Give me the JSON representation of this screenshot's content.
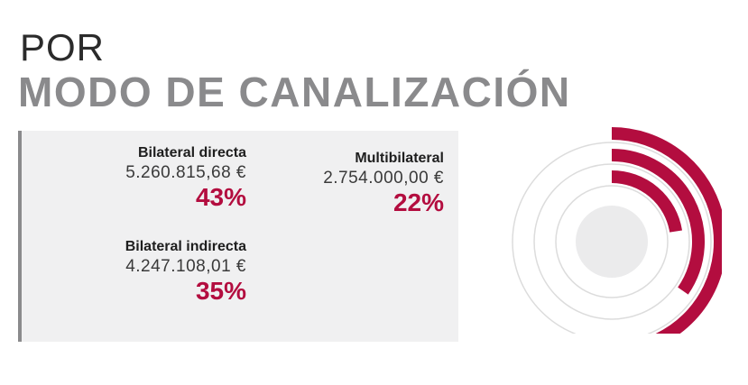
{
  "header": {
    "title_line1": "POR",
    "title_line2": "MODO DE CANALIZACIÓN"
  },
  "colors": {
    "accent": "#b30d3f",
    "title_grey": "#8a8a8c",
    "panel_bg": "#f0f0f1",
    "ring_outline": "#dcdcdc",
    "center_disc": "#ebebec"
  },
  "chart_data": {
    "type": "radial-bar",
    "title": "POR MODO DE CANALIZACIÓN",
    "categories": [
      "Bilateral directa",
      "Bilateral indirecta",
      "Multibilateral"
    ],
    "values": [
      5260815.68,
      4247108.01,
      2754000.0
    ],
    "percentages": [
      43,
      35,
      22
    ],
    "labels": {
      "names": [
        "Bilateral directa",
        "Bilateral indirecta",
        "Multibilateral"
      ],
      "amounts": [
        "5.260.815,68 €",
        "4.247.108,01 €",
        "2.754.000,00 €"
      ],
      "percents": [
        "43%",
        "35%",
        "22%"
      ]
    }
  }
}
